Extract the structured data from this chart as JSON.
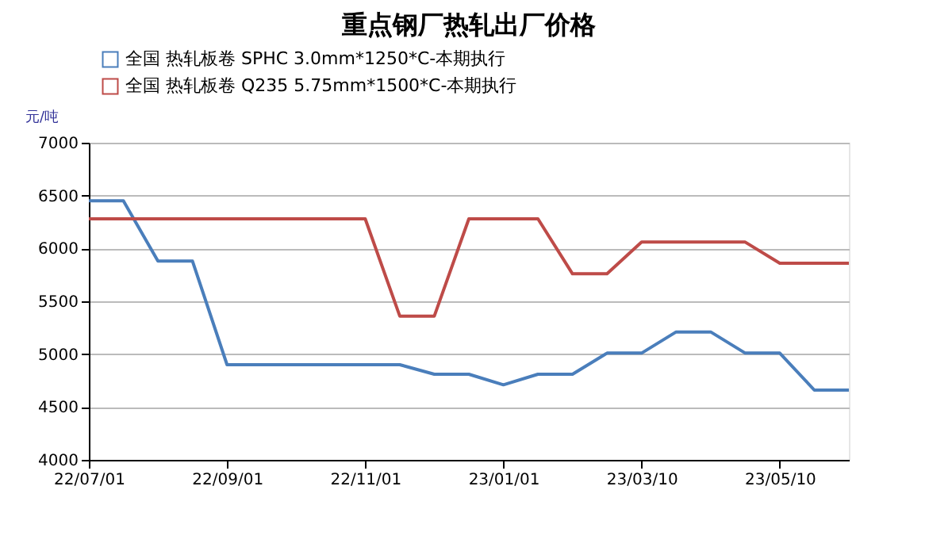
{
  "chart_data": {
    "type": "line",
    "title": "重点钢厂热轧出厂价格",
    "ylabel": "元/吨",
    "categories": [
      "22/07/01",
      null,
      null,
      null,
      "22/09/01",
      null,
      null,
      null,
      "22/11/01",
      null,
      null,
      null,
      "23/01/01",
      null,
      null,
      null,
      "23/03/10",
      null,
      null,
      null,
      "23/05/10",
      null,
      null
    ],
    "series": [
      {
        "name": "全国 热轧板卷 SPHC 3.0mm*1250*C-本期执行",
        "color": "#4a7ebb",
        "values": [
          6450,
          6450,
          5880,
          5880,
          4900,
          4900,
          4900,
          4900,
          4900,
          4900,
          4810,
          4810,
          4710,
          4810,
          4810,
          5010,
          5010,
          5210,
          5210,
          5010,
          5010,
          4660,
          4660
        ]
      },
      {
        "name": "全国 热轧板卷 Q235 5.75mm*1500*C-本期执行",
        "color": "#be4b48",
        "values": [
          6280,
          6280,
          6280,
          6280,
          6280,
          6280,
          6280,
          6280,
          6280,
          5360,
          5360,
          6280,
          6280,
          6280,
          5760,
          5760,
          6060,
          6060,
          6060,
          6060,
          5860,
          5860,
          5860
        ]
      }
    ],
    "ylim": [
      4000,
      7000
    ],
    "yticks": [
      4000,
      4500,
      5000,
      5500,
      6000,
      6500,
      7000
    ],
    "grid": "y",
    "legend": "top left",
    "marker": "none",
    "line_style": "solid"
  }
}
